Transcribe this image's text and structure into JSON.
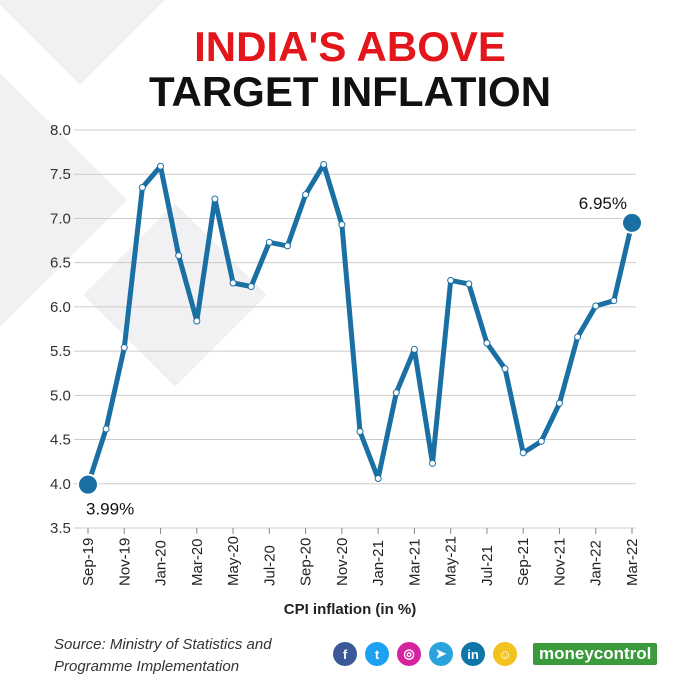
{
  "title": {
    "line1": "INDIA'S ABOVE",
    "line2": "TARGET INFLATION"
  },
  "colors": {
    "title_highlight": "#e3161b",
    "line": "#1a6fa3",
    "grid": "#cccccc",
    "brand": "#3a9a3c"
  },
  "chart_data": {
    "type": "line",
    "title": "INDIA'S ABOVE TARGET INFLATION",
    "xlabel": "CPI inflation (in %)",
    "ylabel": "",
    "ylim": [
      3.5,
      8.0
    ],
    "yticks": [
      "3.5",
      "4.0",
      "4.5",
      "5.0",
      "5.5",
      "6.0",
      "6.5",
      "7.0",
      "7.5",
      "8.0"
    ],
    "grid": true,
    "x": [
      "Sep-19",
      "Oct-19",
      "Nov-19",
      "Dec-19",
      "Jan-20",
      "Feb-20",
      "Mar-20",
      "Apr-20",
      "May-20",
      "Jun-20",
      "Jul-20",
      "Aug-20",
      "Sep-20",
      "Oct-20",
      "Nov-20",
      "Dec-20",
      "Jan-21",
      "Feb-21",
      "Mar-21",
      "Apr-21",
      "May-21",
      "Jun-21",
      "Jul-21",
      "Aug-21",
      "Sep-21",
      "Oct-21",
      "Nov-21",
      "Dec-21",
      "Jan-22",
      "Feb-22",
      "Mar-22"
    ],
    "xtick_labels": [
      "Sep-19",
      "Nov-19",
      "Jan-20",
      "Mar-20",
      "May-20",
      "Jul-20",
      "Sep-20",
      "Nov-20",
      "Jan-21",
      "Mar-21",
      "May-21",
      "Jul-21",
      "Sep-21",
      "Nov-21",
      "Jan-22",
      "Mar-22"
    ],
    "series": [
      {
        "values": [
          3.99,
          4.62,
          5.54,
          7.35,
          7.59,
          6.58,
          5.84,
          7.22,
          6.27,
          6.23,
          6.73,
          6.69,
          7.27,
          7.61,
          6.93,
          4.59,
          4.06,
          5.03,
          5.52,
          4.23,
          6.3,
          6.26,
          5.59,
          5.3,
          4.35,
          4.48,
          4.91,
          5.66,
          6.01,
          6.07,
          6.95
        ]
      }
    ],
    "annotations": [
      {
        "label": "3.99%",
        "x": "Sep-19",
        "y": 3.99
      },
      {
        "label": "6.95%",
        "x": "Mar-22",
        "y": 6.95
      }
    ]
  },
  "source": "Source: Ministry of  Statistics and Programme Implementation",
  "social_icons": [
    {
      "name": "facebook-icon",
      "glyph": "f",
      "color": "#3b5998"
    },
    {
      "name": "twitter-icon",
      "glyph": "t",
      "color": "#1da1f2"
    },
    {
      "name": "instagram-icon",
      "glyph": "◎",
      "color": "#d6249f"
    },
    {
      "name": "telegram-icon",
      "glyph": "➤",
      "color": "#2aa3dd"
    },
    {
      "name": "linkedin-icon",
      "glyph": "in",
      "color": "#0e76a8"
    },
    {
      "name": "snapchat-icon",
      "glyph": "☺",
      "color": "#f4c21c"
    }
  ],
  "brand": "moneycontrol"
}
